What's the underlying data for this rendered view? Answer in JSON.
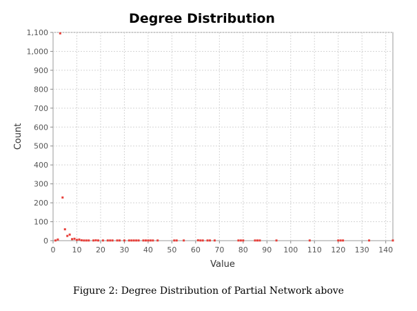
{
  "chart_data": {
    "type": "scatter",
    "title": "Degree Distribution",
    "xlabel": "Value",
    "ylabel": "Count",
    "xlim": [
      0,
      143
    ],
    "ylim": [
      0,
      1100
    ],
    "xticks": [
      0,
      10,
      20,
      30,
      40,
      50,
      60,
      70,
      80,
      90,
      100,
      110,
      120,
      130,
      140
    ],
    "yticks": [
      0,
      100,
      200,
      300,
      400,
      500,
      600,
      700,
      800,
      900,
      1000,
      1100
    ],
    "ytick_labels": [
      "0",
      "100",
      "200",
      "300",
      "400",
      "500",
      "600",
      "700",
      "800",
      "900",
      "1,000",
      "1,100"
    ],
    "grid": true,
    "legend": "none",
    "marker_color": "#e8403a",
    "points": [
      {
        "x": 1,
        "y": 1
      },
      {
        "x": 2,
        "y": 6
      },
      {
        "x": 3,
        "y": 1095
      },
      {
        "x": 4,
        "y": 228
      },
      {
        "x": 5,
        "y": 60
      },
      {
        "x": 6,
        "y": 25
      },
      {
        "x": 7,
        "y": 32
      },
      {
        "x": 8,
        "y": 8
      },
      {
        "x": 9,
        "y": 10
      },
      {
        "x": 10,
        "y": 4
      },
      {
        "x": 11,
        "y": 6
      },
      {
        "x": 12,
        "y": 2
      },
      {
        "x": 13,
        "y": 1
      },
      {
        "x": 14,
        "y": 1
      },
      {
        "x": 15,
        "y": 1
      },
      {
        "x": 17,
        "y": 1
      },
      {
        "x": 18,
        "y": 2
      },
      {
        "x": 19,
        "y": 1
      },
      {
        "x": 21,
        "y": 1
      },
      {
        "x": 23,
        "y": 1
      },
      {
        "x": 24,
        "y": 1
      },
      {
        "x": 25,
        "y": 1
      },
      {
        "x": 27,
        "y": 1
      },
      {
        "x": 28,
        "y": 1
      },
      {
        "x": 30,
        "y": 1
      },
      {
        "x": 32,
        "y": 1
      },
      {
        "x": 33,
        "y": 1
      },
      {
        "x": 34,
        "y": 1
      },
      {
        "x": 35,
        "y": 1
      },
      {
        "x": 36,
        "y": 1
      },
      {
        "x": 38,
        "y": 1
      },
      {
        "x": 39,
        "y": 1
      },
      {
        "x": 40,
        "y": 1
      },
      {
        "x": 41,
        "y": 1
      },
      {
        "x": 42,
        "y": 1
      },
      {
        "x": 44,
        "y": 1
      },
      {
        "x": 51,
        "y": 1
      },
      {
        "x": 52,
        "y": 1
      },
      {
        "x": 55,
        "y": 1
      },
      {
        "x": 61,
        "y": 2
      },
      {
        "x": 62,
        "y": 1
      },
      {
        "x": 63,
        "y": 1
      },
      {
        "x": 65,
        "y": 1
      },
      {
        "x": 66,
        "y": 1
      },
      {
        "x": 68,
        "y": 1
      },
      {
        "x": 78,
        "y": 1
      },
      {
        "x": 79,
        "y": 1
      },
      {
        "x": 80,
        "y": 1
      },
      {
        "x": 85,
        "y": 1
      },
      {
        "x": 86,
        "y": 1
      },
      {
        "x": 87,
        "y": 1
      },
      {
        "x": 94,
        "y": 1
      },
      {
        "x": 108,
        "y": 1
      },
      {
        "x": 120,
        "y": 1
      },
      {
        "x": 121,
        "y": 1
      },
      {
        "x": 122,
        "y": 1
      },
      {
        "x": 133,
        "y": 1
      },
      {
        "x": 143,
        "y": 1
      }
    ]
  },
  "caption": "Figure 2: Degree Distribution of Partial Network above"
}
